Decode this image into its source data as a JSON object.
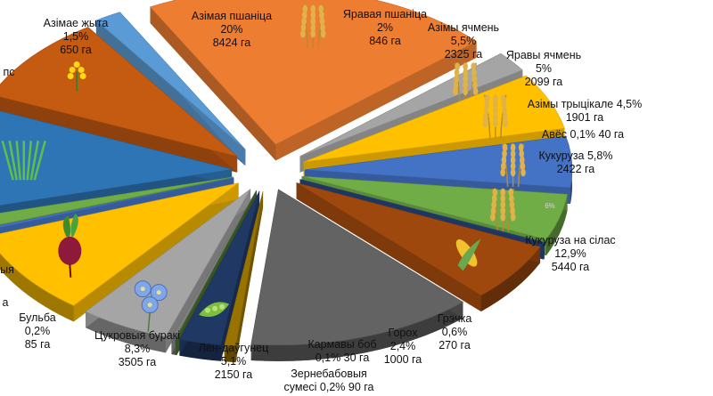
{
  "chart_data": {
    "type": "pie",
    "style": "exploded-3d",
    "unit": "га",
    "slices": [
      {
        "name": "Азімая пшаніца",
        "percent_label": "20%",
        "area_label": "8424 га",
        "value": 8424,
        "color": "#ED7D31",
        "icon": "wheat-icon"
      },
      {
        "name": "Яравая пшаніца",
        "percent_label": "2%",
        "area_label": "846 га",
        "value": 846,
        "color": "#A5A5A5",
        "icon": "wheat-icon"
      },
      {
        "name": "Азімы ячмень",
        "percent_label": "5,5%",
        "area_label": "2325 га",
        "value": 2325,
        "color": "#FFC000",
        "icon": "barley-icon"
      },
      {
        "name": "Яравы ячмень",
        "percent_label": "5%",
        "area_label": "2099 га",
        "value": 2099,
        "color": "#4472C4",
        "icon": "barley-icon"
      },
      {
        "name": "Азімы трыцікале",
        "percent_label": "4,5%",
        "area_label": "1901 га",
        "value": 1901,
        "color": "#70AD47",
        "icon": "grain-icon"
      },
      {
        "name": "Авёс",
        "percent_label": "0,1%",
        "area_label": "40 га",
        "value": 40,
        "color": "#264478",
        "icon": ""
      },
      {
        "name": "Кукуруза",
        "percent_label": "5,8%",
        "area_label": "2422 га",
        "value": 2422,
        "color": "#9E480E",
        "icon": "corn-icon"
      },
      {
        "name": "Кукуруза на сілас",
        "percent_label": "12,9%",
        "area_label": "5440 га",
        "value": 5440,
        "color": "#636363",
        "icon": ""
      },
      {
        "name": "Грэчка",
        "percent_label": "0,6%",
        "area_label": "270 га",
        "value": 270,
        "color": "#997300",
        "icon": ""
      },
      {
        "name": "Горох",
        "percent_label": "2,4%",
        "area_label": "1000 га",
        "value": 1000,
        "color": "#203864",
        "icon": "pea-icon"
      },
      {
        "name": "Кармавы боб",
        "percent_label": "0,1%",
        "area_label": "30 га",
        "value": 30,
        "color": "#43682B",
        "icon": ""
      },
      {
        "name": "Зернебабовыя сумесі",
        "percent_label": "0,2%",
        "area_label": "90 га",
        "value": 90,
        "color": "#7F7F7F",
        "icon": ""
      },
      {
        "name": "Лён-даўгунец",
        "percent_label": "5,1%",
        "area_label": "2150 га",
        "value": 2150,
        "color": "#A5A5A5",
        "icon": "flax-icon"
      },
      {
        "name": "Цукровыя буракі",
        "percent_label": "8,3%",
        "area_label": "3505 га",
        "value": 3505,
        "color": "#FFC000",
        "icon": "beet-icon"
      },
      {
        "name": "Бульба",
        "percent_label": "0,2%",
        "area_label": "85 га",
        "value": 85,
        "color": "#4472C4",
        "icon": ""
      },
      {
        "name": "",
        "percent_label": "",
        "area_label": "",
        "value": 480,
        "color": "#70AD47",
        "icon": ""
      },
      {
        "name": "",
        "percent_label": "",
        "area_label": "",
        "value": 4200,
        "color": "#2E75B6",
        "icon": "grass-icon"
      },
      {
        "name": "",
        "percent_label": "",
        "area_label": "",
        "value": 3600,
        "color": "#C55A11",
        "icon": "rapeseed-icon"
      },
      {
        "name": "Азімае жыта",
        "percent_label": "1,5%",
        "area_label": "650 га",
        "value": 650,
        "color": "#5B9BD5",
        "icon": ""
      }
    ],
    "partial_labels": [
      "пс",
      "ыя",
      "а",
      "6%"
    ]
  },
  "labels": [
    {
      "lines": [
        "Азімая пшаніца",
        "20%",
        "8424 га"
      ]
    },
    {
      "lines": [
        "Яравая пшаніца",
        "2%",
        "846 га"
      ]
    },
    {
      "lines": [
        "Азімы ячмень",
        "5,5%",
        "2325 га"
      ]
    },
    {
      "lines": [
        "Яравы ячмень",
        "5%",
        "2099 га"
      ]
    },
    {
      "lines": [
        "Азімы трыцікале 4,5%",
        "1901 га"
      ]
    },
    {
      "lines": [
        "Авёс 0,1% 40 га"
      ]
    },
    {
      "lines": [
        "Кукуруза 5,8%",
        "2422 га"
      ]
    },
    {
      "lines": [
        "Кукуруза на сілас",
        "12,9%",
        "5440 га"
      ]
    },
    {
      "lines": [
        "Грэчка",
        "0,6%",
        "270 га"
      ]
    },
    {
      "lines": [
        "Горох",
        "2,4%",
        "1000 га"
      ]
    },
    {
      "lines": [
        "Кармавы боб",
        "0,1% 30 га"
      ]
    },
    {
      "lines": [
        "Зернебабовыя",
        "сумесі 0,2% 90 га"
      ]
    },
    {
      "lines": [
        "Лён-даўгунец",
        "5,1%",
        "2150 га"
      ]
    },
    {
      "lines": [
        "Цукровыя буракі",
        "8,3%",
        "3505 га"
      ]
    },
    {
      "lines": [
        "Бульба",
        "0,2%",
        "85 га"
      ]
    },
    {
      "lines": [
        "Азімае жыта",
        "1,5%",
        "650 га"
      ]
    },
    {
      "lines": [
        "пс"
      ]
    },
    {
      "lines": [
        "ыя"
      ]
    },
    {
      "lines": [
        "а"
      ]
    },
    {
      "lines": [
        "6%"
      ]
    }
  ]
}
